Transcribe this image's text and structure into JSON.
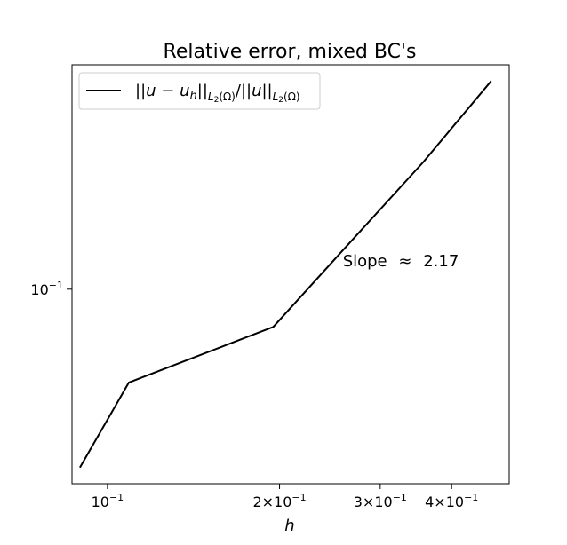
{
  "chart_data": {
    "type": "line",
    "title": "Relative error, mixed BC's",
    "xlabel": "h",
    "ylabel": "",
    "xscale": "log",
    "yscale": "log",
    "xlim": [
      0.0867,
      0.5044
    ],
    "ylim": [
      0.0335,
      0.353
    ],
    "grid": false,
    "legend": {
      "placement": "top-left",
      "entries": [
        "||u − u_h||_{L2(Ω)} / ||u||_{L2(Ω)}"
      ]
    },
    "x_ticks": [
      {
        "value": 0.1,
        "mantissa": "",
        "exp": "−1"
      },
      {
        "value": 0.2,
        "mantissa": "2",
        "exp": "−1"
      },
      {
        "value": 0.3,
        "mantissa": "3",
        "exp": "−1"
      },
      {
        "value": 0.4,
        "mantissa": "4",
        "exp": "−1"
      }
    ],
    "y_ticks": [
      {
        "value": 0.1,
        "mantissa": "",
        "exp": "−1"
      }
    ],
    "series": [
      {
        "color": "#000000",
        "x": [
          0.0895,
          0.109,
          0.195,
          0.25,
          0.357,
          0.469
        ],
        "y": [
          0.0367,
          0.0592,
          0.0809,
          0.1185,
          0.2044,
          0.3222
        ]
      }
    ],
    "annotation": {
      "label": "Slope",
      "symbol": "≈",
      "value": "2.17",
      "anchor_x": 0.258,
      "anchor_y": 0.1136
    }
  }
}
